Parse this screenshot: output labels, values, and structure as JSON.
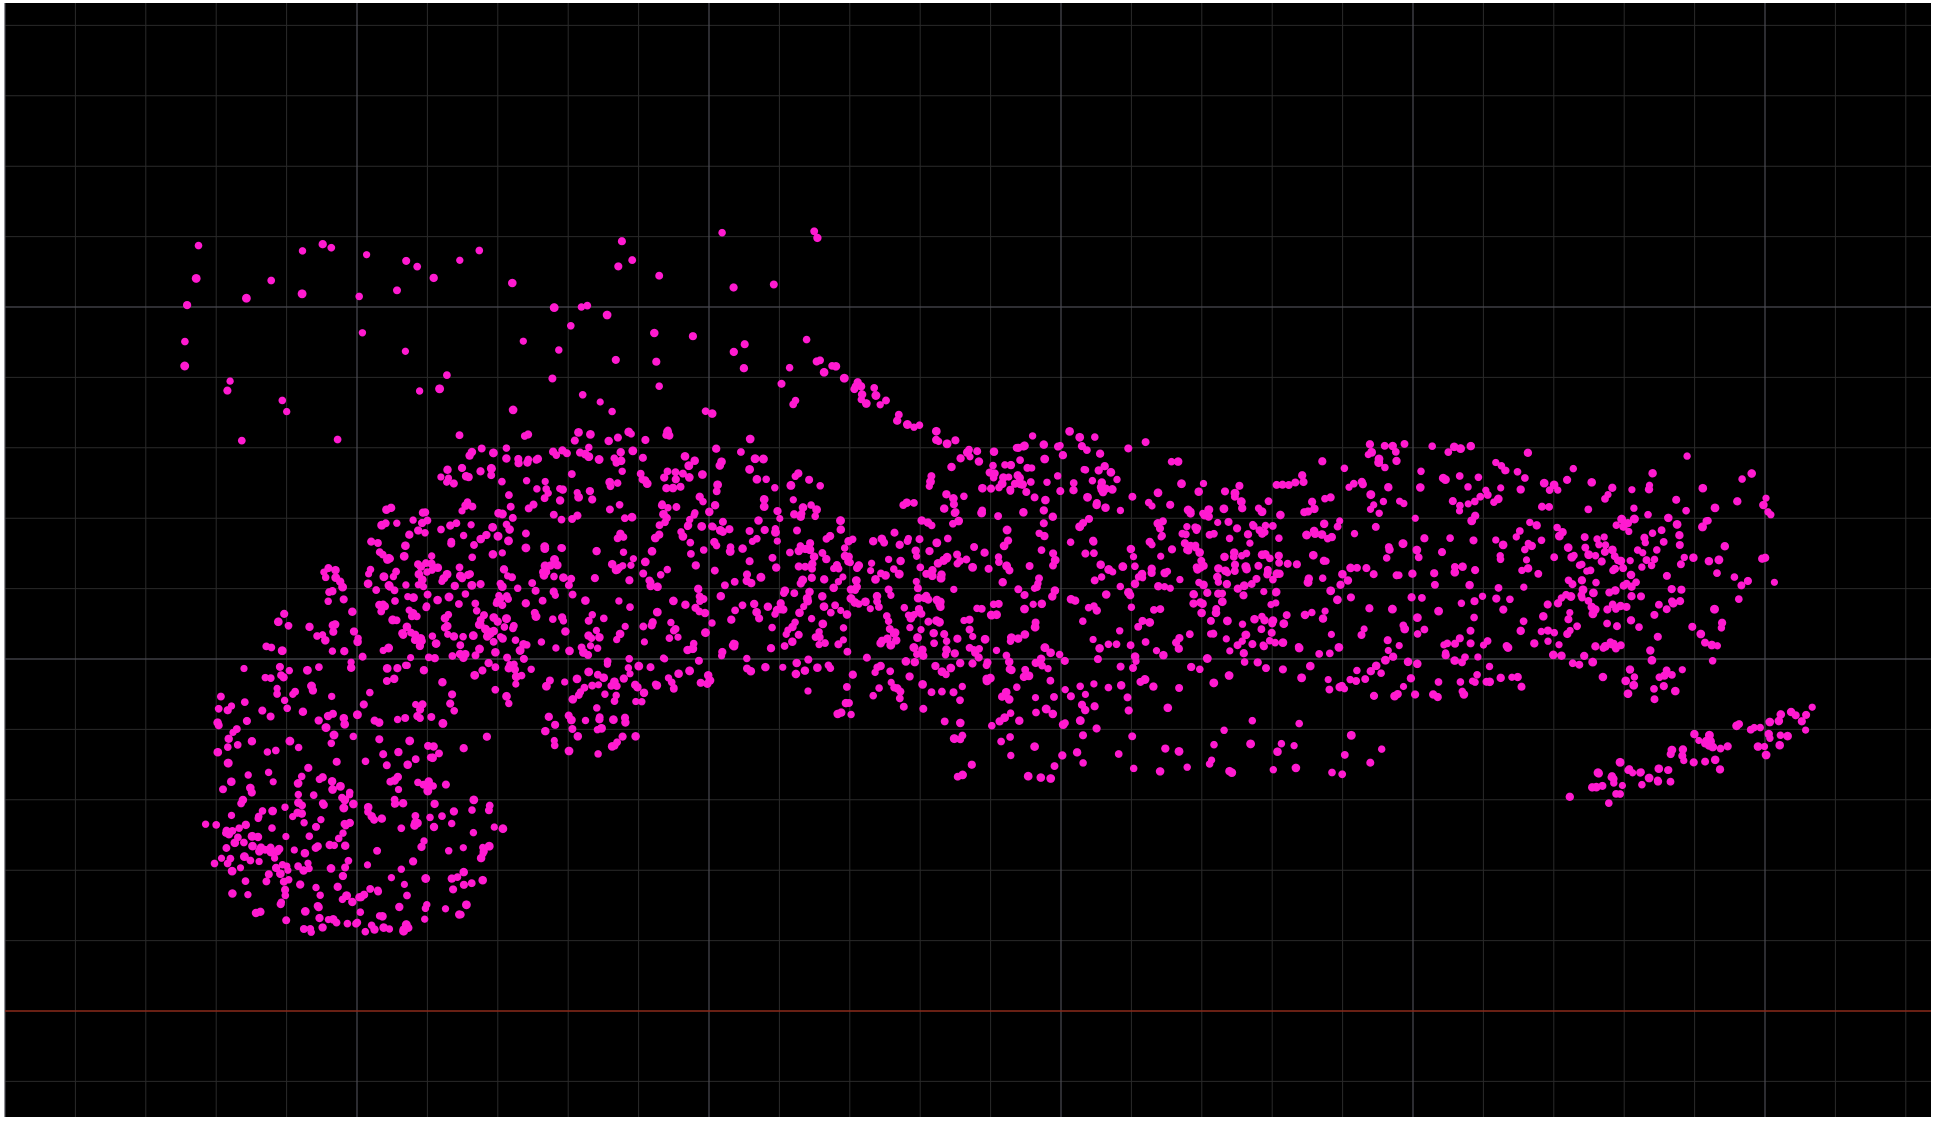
{
  "viewport": {
    "background_color": "#000000",
    "frame_color": "#ffffff"
  },
  "grid": {
    "visible": true,
    "minor_line_color": "#2a2a2a",
    "major_line_color": "#4a4a52",
    "axis_line_color": "#8a2a1a"
  },
  "point_cloud": {
    "point_color": "#ff1ad0",
    "description_visible_text": ""
  }
}
